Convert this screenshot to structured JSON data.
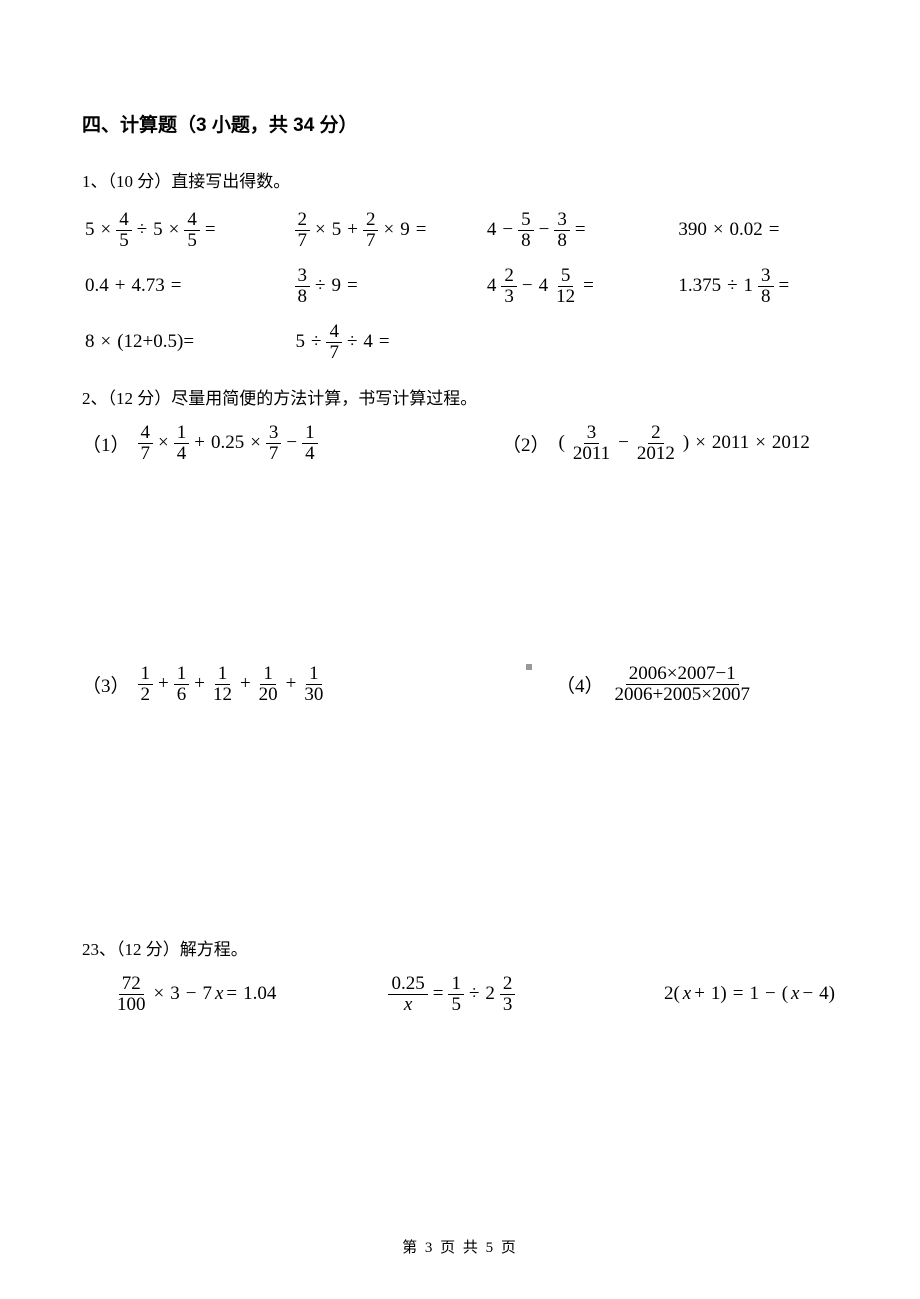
{
  "section_title": "四、计算题（3 小题，共 34 分）",
  "p1": {
    "header": "1、（10 分）直接写出得数。",
    "rows": [
      [
        {
          "parts": [
            "5",
            "×",
            {
              "frac": [
                "4",
                "5"
              ]
            },
            "÷",
            "5",
            "×",
            {
              "frac": [
                "4",
                "5"
              ]
            },
            "="
          ]
        },
        {
          "parts": [
            {
              "frac": [
                "2",
                "7"
              ]
            },
            "×",
            "5",
            "+",
            {
              "frac": [
                "2",
                "7"
              ]
            },
            "×",
            "9",
            "="
          ]
        },
        {
          "parts": [
            "4",
            "−",
            {
              "frac": [
                "5",
                "8"
              ]
            },
            "−",
            {
              "frac": [
                "3",
                "8"
              ]
            },
            "="
          ]
        },
        {
          "parts": [
            "390",
            "×",
            "0.02",
            "="
          ]
        }
      ],
      [
        {
          "parts": [
            "0.4",
            "+",
            "4.73",
            "="
          ]
        },
        {
          "parts": [
            {
              "frac": [
                "3",
                "8"
              ]
            },
            "÷",
            "9",
            "="
          ]
        },
        {
          "parts": [
            "4",
            {
              "frac": [
                "2",
                "3"
              ]
            },
            "−",
            "4",
            {
              "frac": [
                "5",
                "12"
              ]
            },
            "="
          ]
        },
        {
          "parts": [
            "1.375",
            "÷",
            "1",
            {
              "frac": [
                "3",
                "8"
              ]
            },
            "="
          ]
        }
      ],
      [
        {
          "parts": [
            "8",
            "×",
            "(12+0.5)="
          ]
        },
        {
          "parts": [
            "5",
            "÷",
            {
              "frac": [
                "4",
                "7"
              ]
            },
            "÷",
            "4",
            "="
          ]
        },
        null,
        null
      ]
    ]
  },
  "p2": {
    "header": "2、（12 分）尽量用简便的方法计算，书写计算过程。",
    "items": [
      {
        "label": "（1）",
        "parts": [
          {
            "frac": [
              "4",
              "7"
            ]
          },
          "×",
          {
            "frac": [
              "1",
              "4"
            ]
          },
          "+",
          "0.25",
          "×",
          {
            "frac": [
              "3",
              "7"
            ]
          },
          "−",
          {
            "frac": [
              "1",
              "4"
            ]
          }
        ]
      },
      {
        "label": "（2）",
        "parts": [
          "(",
          {
            "frac": [
              "3",
              "2011"
            ]
          },
          "−",
          {
            "frac": [
              "2",
              "2012"
            ]
          },
          ")",
          "×",
          "2011",
          "×",
          "2012"
        ]
      },
      {
        "label": "（3）",
        "parts": [
          {
            "frac": [
              "1",
              "2"
            ]
          },
          "+",
          {
            "frac": [
              "1",
              "6"
            ]
          },
          "+",
          {
            "frac": [
              "1",
              "12"
            ]
          },
          "+",
          {
            "frac": [
              "1",
              "20"
            ]
          },
          "+",
          {
            "frac": [
              "1",
              "30"
            ]
          }
        ]
      },
      {
        "label": "（4）",
        "parts": [
          {
            "frac": [
              "2006×2007−1",
              "2006+2005×2007"
            ]
          }
        ]
      }
    ]
  },
  "p3": {
    "header": "23、（12 分）解方程。",
    "items": [
      {
        "parts": [
          {
            "frac": [
              "72",
              "100"
            ]
          },
          "×",
          "3",
          "−",
          "7",
          {
            "italic": "x"
          },
          "=",
          "1.04"
        ]
      },
      {
        "parts": [
          {
            "frac": [
              "0.25",
              {
                "italic": "x"
              }
            ]
          },
          "=",
          {
            "frac": [
              "1",
              "5"
            ]
          },
          "÷",
          "2",
          {
            "frac": [
              "2",
              "3"
            ]
          }
        ]
      },
      {
        "parts": [
          "2(",
          {
            "italic": "x"
          },
          "+",
          "1)",
          "=",
          "1",
          "−",
          "(",
          {
            "italic": "x"
          },
          "−",
          "4)"
        ]
      }
    ]
  },
  "footer": {
    "prefix": "第 ",
    "current": "3",
    "mid": " 页 共 ",
    "total": "5",
    "suffix": " 页"
  }
}
